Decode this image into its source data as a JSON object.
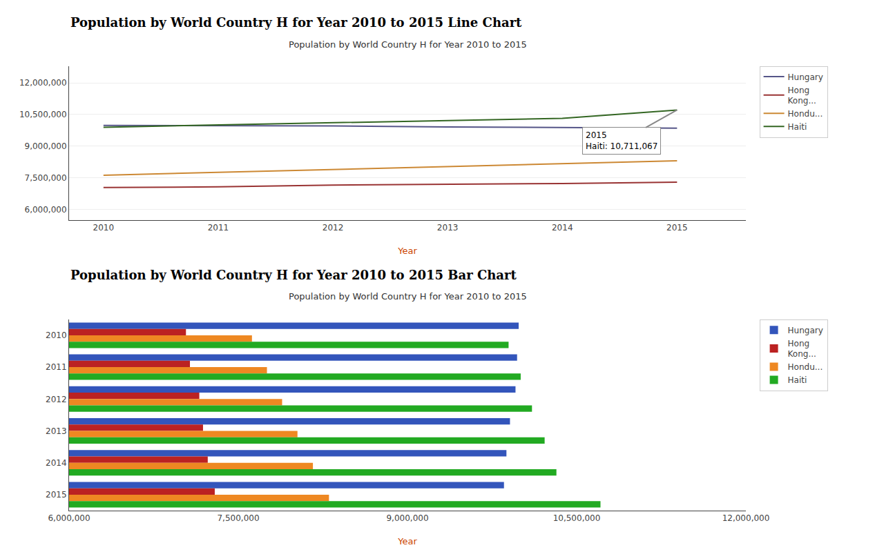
{
  "chart_data": [
    {
      "type": "line",
      "title": "Population by World Country H for Year 2010 to 2015 Line Chart",
      "subtitle": "Population by World Country H for Year 2010 to 2015",
      "xlabel": "Year",
      "x": [
        2010,
        2011,
        2012,
        2013,
        2014,
        2015
      ],
      "series": [
        {
          "name": "Hungary",
          "color": "#555588",
          "values": [
            9985722,
            9971727,
            9957731,
            9908798,
            9877365,
            9855571
          ]
        },
        {
          "name": "Hong\nKong...",
          "color": "#993333",
          "values": [
            7036300,
            7071600,
            7154600,
            7187500,
            7229500,
            7291600
          ]
        },
        {
          "name": "Hondu...",
          "color": "#cc8833",
          "values": [
            7621414,
            7754319,
            7888718,
            8024792,
            8161793,
            8304273
          ]
        },
        {
          "name": "Haiti",
          "color": "#336622",
          "values": [
            9896400,
            10003798,
            10103798,
            10215999,
            10320443,
            10711067
          ]
        }
      ],
      "xlim": [
        2009.7,
        2015.6
      ],
      "xticks": [
        2010,
        2011,
        2012,
        2013,
        2014,
        2015
      ],
      "ylim": [
        5500000,
        12800000
      ],
      "yticks": [
        {
          "value": 6000000,
          "label": "6,000,000"
        },
        {
          "value": 7500000,
          "label": "7,500,000"
        },
        {
          "value": 9000000,
          "label": "9,000,000"
        },
        {
          "value": 10500000,
          "label": "10,500,000"
        },
        {
          "value": 12000000,
          "label": "12,000,000"
        }
      ],
      "grid": true,
      "annotations": [
        {
          "text": "2015\nHaiti: 10,711,067"
        }
      ]
    },
    {
      "type": "bar",
      "orientation": "horizontal",
      "title": "Population by World Country H for Year 2010 to 2015 Bar Chart",
      "subtitle": "Population by World Country H for Year 2010 to 2015",
      "xlabel": "Year",
      "categories": [
        "2010",
        "2011",
        "2012",
        "2013",
        "2014",
        "2015"
      ],
      "series": [
        {
          "name": "Hungary",
          "color": "#3355bb",
          "values": [
            9985722,
            9971727,
            9957731,
            9908798,
            9877365,
            9855571
          ]
        },
        {
          "name": "Hong\nKong...",
          "color": "#bb2222",
          "values": [
            7036300,
            7071600,
            7154600,
            7187500,
            7229500,
            7291600
          ]
        },
        {
          "name": "Hondu...",
          "color": "#ee8822",
          "values": [
            7621414,
            7754319,
            7888718,
            8024792,
            8161793,
            8304273
          ]
        },
        {
          "name": "Haiti",
          "color": "#22aa22",
          "values": [
            9896400,
            10003798,
            10103798,
            10215999,
            10320443,
            10711067
          ]
        }
      ],
      "xlim": [
        6000000,
        12000000
      ],
      "xticks": [
        {
          "value": 6000000,
          "label": "6,000,000"
        },
        {
          "value": 7500000,
          "label": "7,500,000"
        },
        {
          "value": 9000000,
          "label": "9,000,000"
        },
        {
          "value": 10500000,
          "label": "10,500,000"
        },
        {
          "value": 12000000,
          "label": "12,000,000"
        }
      ],
      "grid": false
    }
  ]
}
